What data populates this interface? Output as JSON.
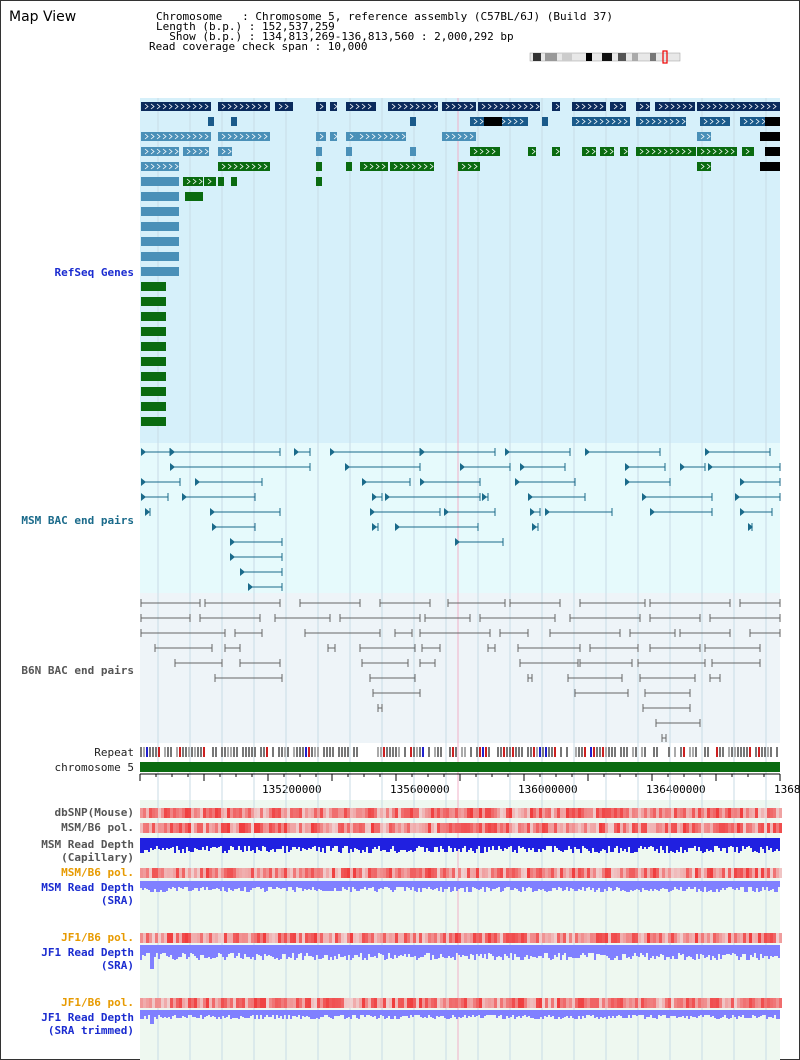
{
  "title": "Map View",
  "header": {
    "chromosome_line": "Chromosome   : Chromosome 5, reference assembly (C57BL/6J) (Build 37)",
    "length_line": "Length (b.p.) : 152,537,259",
    "show_line": "  Show (b.p.) : 134,813,269-136,813,560 : 2,000,292 bp",
    "coverage_line": "Read coverage check span : 10,000"
  },
  "tracks": {
    "refseq": "RefSeq Genes",
    "msm_bac": "MSM BAC end pairs",
    "b6n_bac": "B6N BAC end pairs",
    "repeat": "Repeat",
    "chromosome": "chromosome 5",
    "dbsnp": "dbSNP(Mouse)",
    "msm_b6_pol": "MSM/B6 pol.",
    "msm_depth_cap_1": "MSM Read Depth",
    "msm_depth_cap_2": "(Capillary)",
    "msm_b6_pol_sra": "MSM/B6 pol.",
    "msm_depth_sra_1": "MSM Read Depth",
    "msm_depth_sra_2": "(SRA)",
    "jf1_b6_pol": "JF1/B6 pol.",
    "jf1_depth_1": "JF1 Read Depth",
    "jf1_depth_2": "(SRA)",
    "jf1_b6_pol_t": "JF1/B6 pol.",
    "jf1_depth_t_1": "JF1 Read Depth",
    "jf1_depth_t_2": "(SRA trimmed)"
  },
  "axis": {
    "ticks": [
      "135200000",
      "135600000",
      "136000000",
      "136400000",
      "1368"
    ]
  },
  "colors": {
    "refseq_bg": "#d6f0fa",
    "msm_bg": "#e6fafc",
    "b6n_bg": "#eef4f8",
    "gene_dark": "#0a2a5c",
    "gene_light": "#4a90b8",
    "gene_green": "#0a6b10",
    "bac_msm": "#1a6a8a",
    "bac_b6n": "#666666",
    "chrom_bar": "#0a6b10",
    "depth_blue": "#2020e0",
    "depth_light": "#8080ff"
  }
}
